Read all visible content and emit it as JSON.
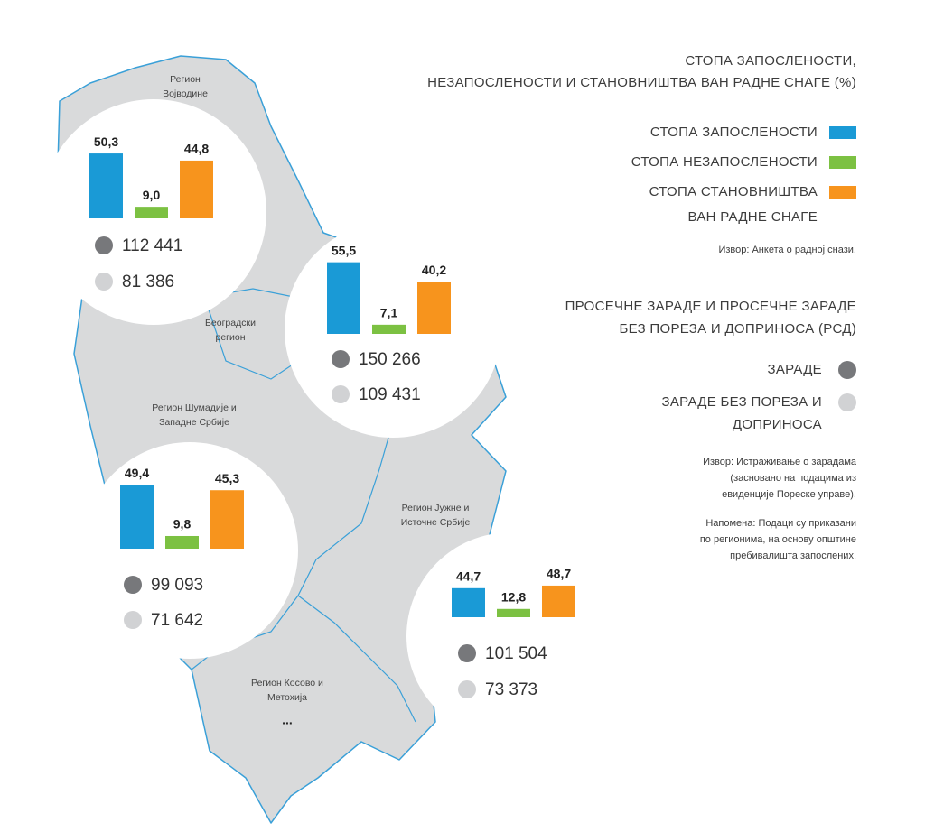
{
  "title": {
    "lines": [
      "СТОПА ЗАПОСЛЕНОСТИ,",
      "НЕЗАПОСЛЕНОСТИ И СТАНОВНИШТВА ВАН РАДНЕ СНАГЕ (%)"
    ]
  },
  "rate_legend": [
    {
      "label_lines": [
        "СТОПА ЗАПОСЛЕНОСТИ"
      ],
      "color": "#1a9ad6"
    },
    {
      "label_lines": [
        "СТОПА НЕЗАПОСЛЕНОСТИ"
      ],
      "color": "#7cc142"
    },
    {
      "label_lines": [
        "СТОПА СТАНОВНИШТВА",
        "ВАН РАДНЕ СНАГЕ"
      ],
      "color": "#f7941d"
    }
  ],
  "rate_source": "Извор: Анкета о радној снази.",
  "wage_title": {
    "lines": [
      "ПРОСЕЧНЕ ЗАРАДЕ И ПРОСЕЧНЕ ЗАРАДЕ",
      "БЕЗ ПОРЕЗА И ДОПРИНОСА (РСД)"
    ]
  },
  "wage_legend": [
    {
      "label_lines": [
        "ЗАРАДЕ"
      ],
      "color": "#77787b"
    },
    {
      "label_lines": [
        "ЗАРАДЕ БЕЗ ПОРЕЗА И",
        "ДОПРИНОСА"
      ],
      "color": "#d1d2d4"
    }
  ],
  "wage_source_lines": [
    "Извор: Истраживање о зарадама",
    "(засновано на подацима из",
    "евиденције Пореске управе)."
  ],
  "note_lines": [
    "Напомена: Подаци су приказани",
    "по регионима, на основу општине",
    "пребивалишта запослених."
  ],
  "regions": [
    {
      "name_lines": [
        "Регион",
        "Војводине"
      ],
      "rates": [
        50.3,
        9.0,
        44.8
      ],
      "rate_labels": [
        "50,3",
        "9,0",
        "44,8"
      ],
      "wages": [
        "112 441",
        "81 386"
      ]
    },
    {
      "name_lines": [
        "Београдски",
        "регион"
      ],
      "rates": [
        55.5,
        7.1,
        40.2
      ],
      "rate_labels": [
        "55,5",
        "7,1",
        "40,2"
      ],
      "wages": [
        "150 266",
        "109 431"
      ]
    },
    {
      "name_lines": [
        "Регион Шумадије и",
        "Западне Србије"
      ],
      "rates": [
        49.4,
        9.8,
        45.3
      ],
      "rate_labels": [
        "49,4",
        "9,8",
        "45,3"
      ],
      "wages": [
        "99 093",
        "71 642"
      ]
    },
    {
      "name_lines": [
        "Регион Јужне и",
        "Источне Србије"
      ],
      "rates": [
        44.7,
        12.8,
        48.7
      ],
      "rate_labels": [
        "44,7",
        "12,8",
        "48,7"
      ],
      "wages": [
        "101 504",
        "73 373"
      ]
    },
    {
      "name_lines": [
        "Регион Косово и",
        "Метохија"
      ],
      "placeholder": "..."
    }
  ]
}
